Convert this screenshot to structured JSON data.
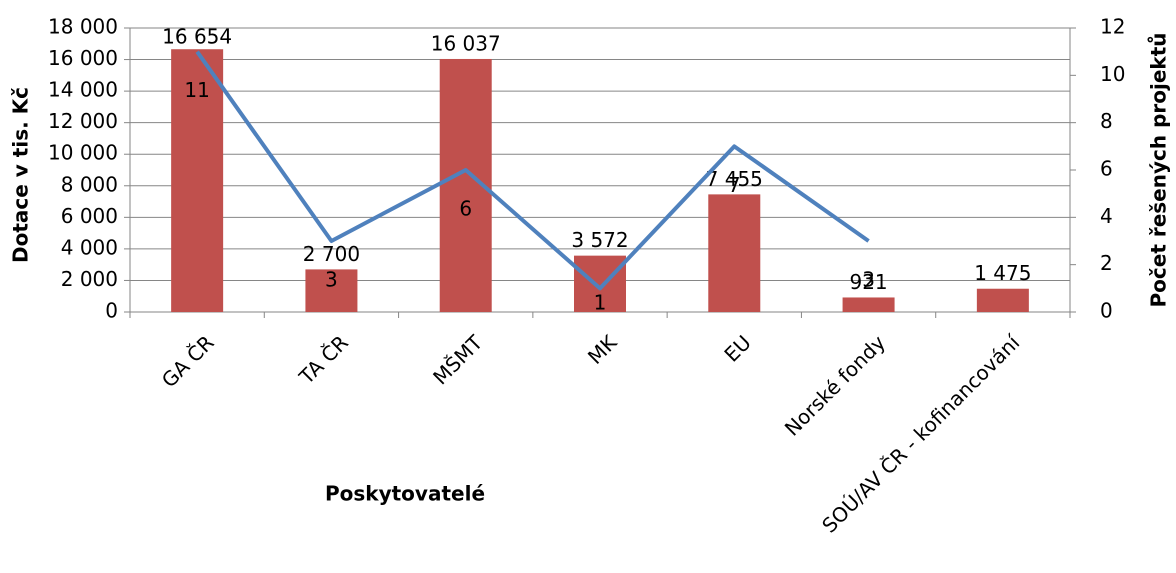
{
  "chart_data": {
    "type": "bar",
    "categories": [
      "GA ČR",
      "TA ČR",
      "MŠMT",
      "MK",
      "EU",
      "Norské fondy",
      "SOÚ/AV ČR - kofinancování"
    ],
    "series": [
      {
        "type": "bar",
        "color": "#c0504d",
        "values": [
          16654,
          2700,
          16037,
          3572,
          7455,
          921,
          1475
        ],
        "value_labels": [
          "16 654",
          "2 700",
          "16 037",
          "3 572",
          "7 455",
          "921",
          "1 475"
        ]
      },
      {
        "type": "line",
        "axis": "y2",
        "color": "#4f81bd",
        "values": [
          11,
          3,
          6,
          1,
          7,
          3,
          null
        ]
      }
    ],
    "ylabel": "Dotace v tis. Kč",
    "y2label": "Počet řešených projektů",
    "xlabel": "Poskytovatelé",
    "ylim": [
      0,
      18000
    ],
    "yticks": [
      0,
      {
        "value": 2000,
        "label": "2 000"
      },
      {
        "value": 4000,
        "label": "4 000"
      },
      {
        "value": 6000,
        "label": "6 000"
      },
      {
        "value": 8000,
        "label": "8 000"
      },
      {
        "value": 10000,
        "label": "10 000"
      },
      {
        "value": 12000,
        "label": "12 000"
      },
      {
        "value": 14000,
        "label": "14 000"
      },
      {
        "value": 16000,
        "label": "16 000"
      },
      {
        "value": 18000,
        "label": "18 000"
      }
    ],
    "y2lim": [
      0,
      12
    ],
    "y2ticks": [
      0,
      2,
      4,
      6,
      8,
      10,
      12
    ],
    "grid": true
  }
}
